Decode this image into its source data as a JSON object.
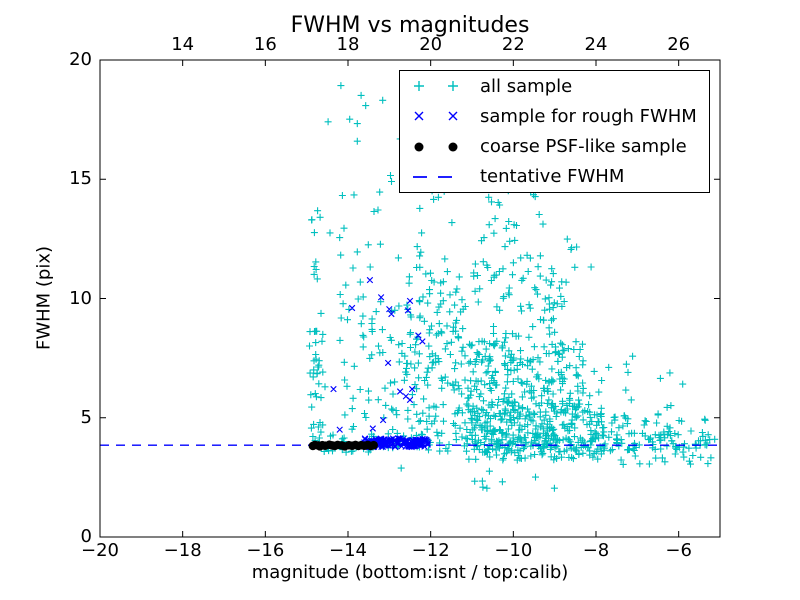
{
  "chart_data": {
    "type": "scatter",
    "title": "FWHM vs magnitudes",
    "xlabel": "magnitude (bottom:isnt / top:calib)",
    "ylabel": "FWHM (pix)",
    "xlim": [
      -20,
      -5
    ],
    "ylim": [
      0,
      20
    ],
    "grid": false,
    "axes": {
      "bottom_tick_values": [
        -20,
        -18,
        -16,
        -14,
        -12,
        -10,
        -8,
        -6
      ],
      "bottom_tick_labels": [
        "−20",
        "−18",
        "−16",
        "−14",
        "−12",
        "−10",
        "−8",
        "−6"
      ],
      "top_tick_values": [
        14,
        16,
        18,
        20,
        22,
        24,
        26
      ],
      "top_tick_labels": [
        "14",
        "16",
        "18",
        "20",
        "22",
        "24",
        "26"
      ],
      "top_axis_offset_calib_minus_isnt": 32,
      "y_tick_values": [
        0,
        5,
        10,
        15,
        20
      ],
      "y_tick_labels": [
        "0",
        "5",
        "10",
        "15",
        "20"
      ]
    },
    "colors": {
      "all_sample": "#00bfbf",
      "rough_fwhm": "#0000ff",
      "coarse_psf": "#000000",
      "tentative_line": "#0000ff",
      "axis": "#000000"
    },
    "legend": {
      "position": "upper right",
      "entries": [
        "all sample",
        "sample for rough FWHM",
        "coarse PSF-like sample",
        "tentative FWHM"
      ]
    },
    "tentative_fwhm": 3.85,
    "note": "Dense scatter reconstructed from image: clusters give estimated bounding box (x0,x1,y0,y1) and point count n; points arrays are estimated individual markers.",
    "series": [
      {
        "name": "all sample",
        "marker": "plus",
        "color": "#00bfbf",
        "clusters": [
          {
            "x0": -14.95,
            "x1": -14.55,
            "y0": 3.9,
            "y1": 9.5,
            "n": 38
          },
          {
            "x0": -14.9,
            "x1": -14.6,
            "y0": 9.5,
            "y1": 14.2,
            "n": 10
          },
          {
            "x0": -14.6,
            "x1": -11.3,
            "y0": 10.0,
            "y1": 19.3,
            "n": 55
          },
          {
            "x0": -14.2,
            "x1": -11.2,
            "y0": 4.3,
            "y1": 10.0,
            "n": 130
          },
          {
            "x0": -12.6,
            "x1": -11.0,
            "y0": 4.5,
            "y1": 12.0,
            "n": 80
          },
          {
            "x0": -11.2,
            "x1": -7.8,
            "y0": 3.2,
            "y1": 5.6,
            "n": 330
          },
          {
            "x0": -11.1,
            "x1": -8.3,
            "y0": 5.2,
            "y1": 8.2,
            "n": 200
          },
          {
            "x0": -11.0,
            "x1": -8.8,
            "y0": 8.0,
            "y1": 11.5,
            "n": 70
          },
          {
            "x0": -10.8,
            "x1": -9.2,
            "y0": 11.2,
            "y1": 14.6,
            "n": 22
          },
          {
            "x0": -14.8,
            "x1": -5.15,
            "y0": 3.55,
            "y1": 4.35,
            "n": 170
          },
          {
            "x0": -7.8,
            "x1": -5.1,
            "y0": 3.0,
            "y1": 5.2,
            "n": 70
          },
          {
            "x0": -9.0,
            "x1": -5.6,
            "y0": 5.2,
            "y1": 7.6,
            "n": 18
          },
          {
            "x0": -13.2,
            "x1": -8.8,
            "y0": 1.9,
            "y1": 3.0,
            "n": 9
          },
          {
            "x0": -11.5,
            "x1": -7.9,
            "y0": 12.0,
            "y1": 18.8,
            "n": 25
          },
          {
            "x0": -9.2,
            "x1": -8.1,
            "y0": 9.5,
            "y1": 12.5,
            "n": 10
          }
        ],
        "points": []
      },
      {
        "name": "sample for rough FWHM",
        "marker": "x",
        "color": "#0000ff",
        "clusters": [
          {
            "x0": -13.62,
            "x1": -12.05,
            "y0": 3.76,
            "y1": 4.14,
            "n": 150
          }
        ],
        "points": [
          [
            -13.47,
            10.77
          ],
          [
            -13.9,
            9.6
          ],
          [
            -13.2,
            10.05
          ],
          [
            -13.0,
            9.55
          ],
          [
            -12.95,
            9.35
          ],
          [
            -12.5,
            9.9
          ],
          [
            -12.55,
            9.5
          ],
          [
            -13.03,
            7.3
          ],
          [
            -12.74,
            6.1
          ],
          [
            -12.6,
            5.9
          ],
          [
            -12.5,
            5.75
          ],
          [
            -12.45,
            6.2
          ],
          [
            -14.35,
            6.2
          ],
          [
            -14.2,
            4.5
          ],
          [
            -13.4,
            4.55
          ],
          [
            -13.15,
            4.9
          ],
          [
            -12.3,
            8.45
          ],
          [
            -12.2,
            8.2
          ]
        ]
      },
      {
        "name": "coarse PSF-like sample",
        "marker": "dot",
        "color": "#000000",
        "clusters": [],
        "points": [
          [
            -14.85,
            3.82
          ],
          [
            -14.8,
            3.86
          ],
          [
            -14.72,
            3.84
          ],
          [
            -14.68,
            3.8
          ],
          [
            -14.62,
            3.85
          ],
          [
            -14.55,
            3.83
          ],
          [
            -14.45,
            3.87
          ],
          [
            -14.38,
            3.84
          ],
          [
            -14.32,
            3.82
          ],
          [
            -14.25,
            3.86
          ],
          [
            -14.15,
            3.84
          ],
          [
            -14.08,
            3.8
          ],
          [
            -13.98,
            3.85
          ],
          [
            -13.9,
            3.83
          ],
          [
            -13.82,
            3.86
          ],
          [
            -13.75,
            3.82
          ],
          [
            -13.68,
            3.85
          ],
          [
            -13.6,
            3.83
          ],
          [
            -13.52,
            3.86
          ],
          [
            -13.45,
            3.82
          ],
          [
            -13.38,
            3.85
          ]
        ]
      },
      {
        "name": "tentative FWHM",
        "marker": "hline-dashed",
        "color": "#0000ff",
        "y": 3.85
      }
    ]
  }
}
